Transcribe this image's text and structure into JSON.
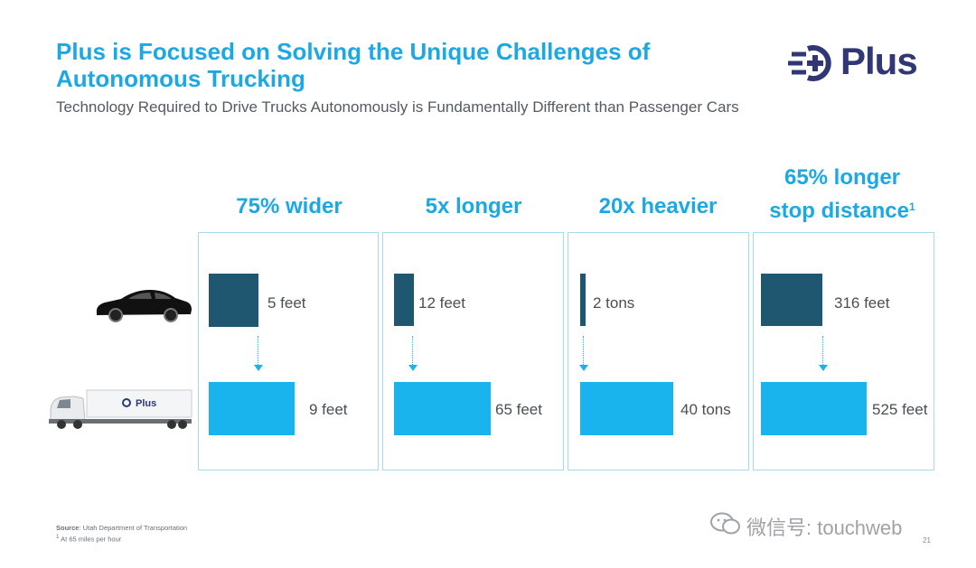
{
  "title": "Plus is Focused on Solving the Unique Challenges of Autonomous Trucking",
  "subtitle": "Technology Required to Drive Trucks Autonomously is Fundamentally Different than Passenger Cars",
  "logo": {
    "text": "Plus",
    "color": "#2f3875"
  },
  "truck_logo": "Plus",
  "colors": {
    "accent": "#1ca8e3",
    "car_bar": "#1f5670",
    "truck_bar": "#19b3ee",
    "panel_border": "#a8dbe9"
  },
  "columns": [
    {
      "heading": "75% wider",
      "car_value": "5 feet",
      "truck_value": "9 feet"
    },
    {
      "heading": "5x longer",
      "car_value": "12 feet",
      "truck_value": "65 feet"
    },
    {
      "heading": "20x heavier",
      "car_value": "2 tons",
      "truck_value": "40 tons"
    },
    {
      "heading_line1": "65% longer",
      "heading_line2": "stop distance",
      "footnote_mark": "1",
      "car_value": "316 feet",
      "truck_value": "525 feet"
    }
  ],
  "source": {
    "label": "Source",
    "text": ": Utah Department of Transportation"
  },
  "footnote": {
    "mark": "1",
    "text": " At 65 miles per hour"
  },
  "page_number": "21",
  "watermark": "微信号: touchweb"
}
